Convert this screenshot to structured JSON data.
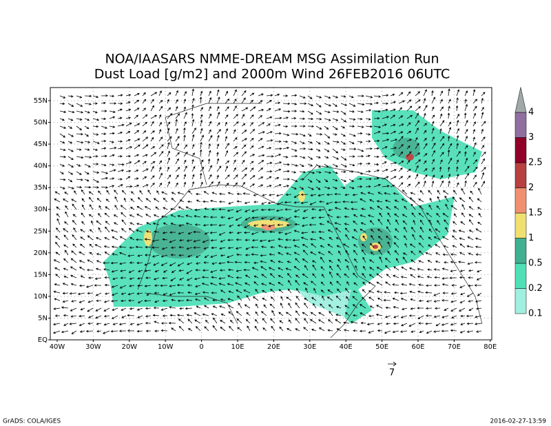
{
  "title": [
    "NOA/IAASARS NMME-DREAM MSG Assimilation Run",
    "Dust Load [g/m2] and 2000m Wind 26FEB2016 06UTC"
  ],
  "map": {
    "lat_labels": [
      "EQ",
      "5N",
      "10N",
      "15N",
      "20N",
      "25N",
      "30N",
      "35N",
      "40N",
      "45N",
      "50N",
      "55N"
    ],
    "lon_labels": [
      "40W",
      "30W",
      "20W",
      "10W",
      "0",
      "10E",
      "20E",
      "30E",
      "40E",
      "50E",
      "60E",
      "70E",
      "80E"
    ]
  },
  "colorbar": {
    "labels": [
      "0.1",
      "0.2",
      "0.5",
      "1",
      "1.5",
      "2",
      "2.5",
      "3",
      "4"
    ],
    "colors": [
      "#a0f0e0",
      "#50e0b8",
      "#40b090",
      "#f0e070",
      "#f09070",
      "#b84040",
      "#900028",
      "#9070a0",
      "#a0a8a8"
    ]
  },
  "wind_reference": "7",
  "footer": {
    "left": "GrADS: COLA/IGES",
    "right": "2016-02-27-13:59"
  }
}
